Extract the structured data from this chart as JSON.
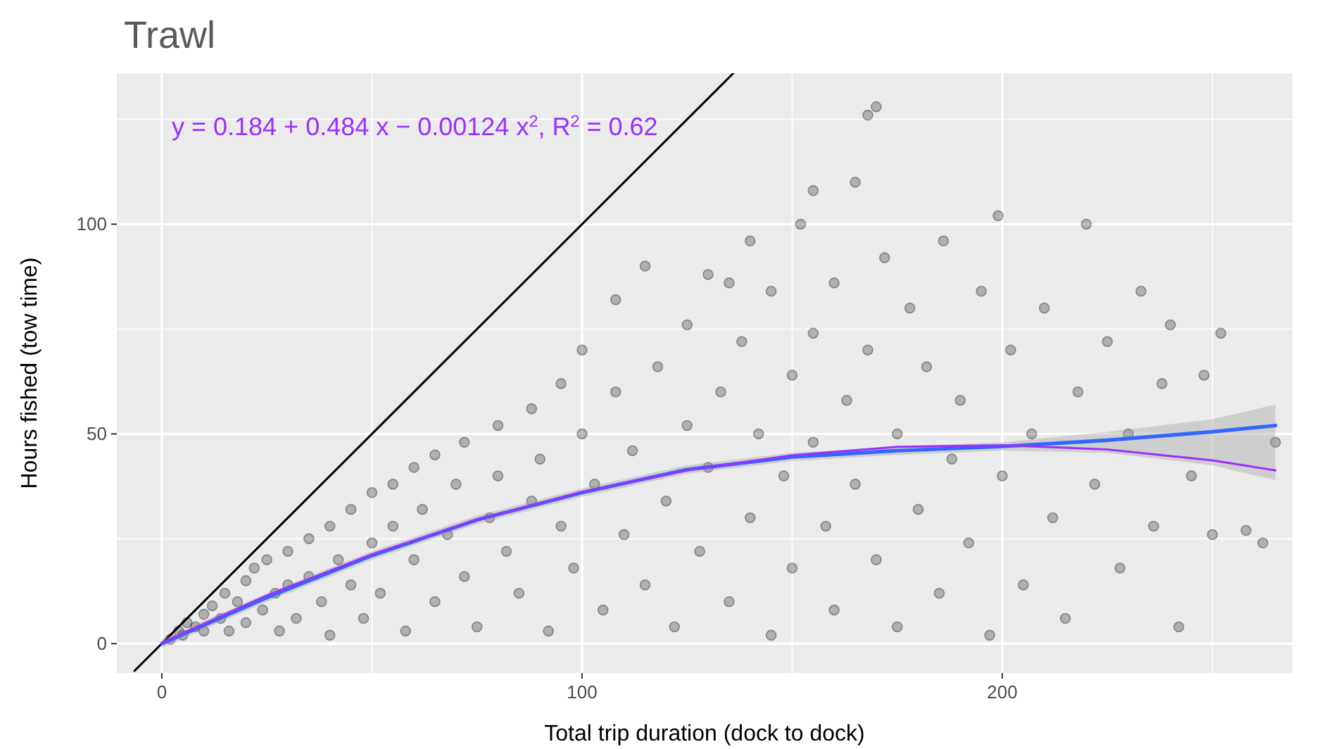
{
  "chart_data": {
    "type": "scatter",
    "title": "Trawl",
    "xlabel": "Total trip duration (dock to dock)",
    "ylabel": "Hours fished (tow time)",
    "annotations": [
      "y = 0.184 + 0.484 x − 0.00124 x$^{2}$, R$^{2}$ = 0.62"
    ],
    "xlim": [
      -10.7,
      269
    ],
    "ylim": [
      -7,
      136
    ],
    "xticks": [
      0,
      {
        "value": 50,
        "label": null
      },
      100,
      {
        "value": 150,
        "label": null
      },
      200,
      {
        "value": 250,
        "label": null
      }
    ],
    "yticks": [
      0,
      {
        "value": 25,
        "label": null
      },
      50,
      {
        "value": 75,
        "label": null
      },
      100,
      {
        "value": 125,
        "label": null
      }
    ],
    "grid": true,
    "series": [
      {
        "color": "#000000",
        "marker": "circle",
        "x": [
          2,
          4,
          5,
          6,
          8,
          10,
          10,
          12,
          14,
          15,
          16,
          18,
          20,
          20,
          22,
          24,
          25,
          27,
          28,
          30,
          30,
          32,
          35,
          35,
          38,
          40,
          40,
          42,
          45,
          45,
          48,
          50,
          50,
          52,
          55,
          55,
          58,
          60,
          60,
          62,
          65,
          65,
          68,
          70,
          72,
          72,
          75,
          78,
          80,
          80,
          82,
          85,
          88,
          88,
          90,
          92,
          95,
          95,
          98,
          100,
          100,
          103,
          105,
          108,
          108,
          110,
          112,
          115,
          115,
          118,
          120,
          122,
          125,
          125,
          128,
          130,
          130,
          133,
          135,
          138,
          140,
          140,
          142,
          145,
          145,
          148,
          150,
          150,
          152,
          155,
          155,
          158,
          160,
          160,
          163,
          165,
          165,
          168,
          170,
          170,
          172,
          175,
          175,
          178,
          180,
          182,
          185,
          186,
          188,
          190,
          192,
          195,
          197,
          199,
          200,
          202,
          205,
          207,
          210,
          212,
          215,
          218,
          220,
          222,
          225,
          228,
          230,
          233,
          236,
          238,
          240,
          242,
          245,
          248,
          250,
          252,
          258,
          262,
          265,
          168,
          155,
          135
        ],
        "values": [
          1,
          3,
          2,
          5,
          4,
          7,
          3,
          9,
          6,
          12,
          3,
          10,
          15,
          5,
          18,
          8,
          20,
          12,
          3,
          22,
          14,
          6,
          25,
          16,
          10,
          28,
          2,
          20,
          32,
          14,
          6,
          36,
          24,
          12,
          38,
          28,
          3,
          42,
          20,
          32,
          45,
          10,
          26,
          38,
          48,
          16,
          4,
          30,
          52,
          40,
          22,
          12,
          56,
          34,
          44,
          3,
          62,
          28,
          18,
          50,
          70,
          38,
          8,
          82,
          60,
          26,
          46,
          90,
          14,
          66,
          34,
          4,
          76,
          52,
          22,
          88,
          42,
          60,
          10,
          72,
          96,
          30,
          50,
          84,
          2,
          40,
          64,
          18,
          100,
          74,
          48,
          28,
          86,
          8,
          58,
          110,
          38,
          70,
          128,
          20,
          92,
          50,
          4,
          80,
          32,
          66,
          12,
          96,
          44,
          58,
          24,
          84,
          2,
          102,
          40,
          70,
          14,
          50,
          80,
          30,
          6,
          60,
          100,
          38,
          72,
          18,
          50,
          84,
          28,
          62,
          76,
          4,
          40,
          64,
          26,
          74,
          27,
          24,
          48,
          126,
          108,
          86
        ]
      },
      {
        "type": "line",
        "color": "#000000",
        "x": [
          -6.5,
          136
        ],
        "values": [
          -6.5,
          136
        ]
      },
      {
        "type": "line",
        "color": "#3366ff",
        "x": [
          0,
          25,
          50,
          75,
          100,
          125,
          150,
          175,
          200,
          225,
          250,
          265
        ],
        "values": [
          0,
          11,
          21,
          29.5,
          36,
          41.5,
          44.5,
          46,
          47,
          48.5,
          50.5,
          52
        ],
        "lower": [
          -1,
          10,
          20,
          28.5,
          35,
          40.5,
          43.5,
          45,
          46,
          45.5,
          42.5,
          39
        ],
        "upper": [
          1,
          12,
          22,
          30.5,
          37,
          42.5,
          45.5,
          47,
          48,
          50.5,
          53.5,
          57
        ]
      },
      {
        "type": "line",
        "color": "#9b30ff",
        "x": [
          0,
          25,
          50,
          75,
          100,
          125,
          150,
          175,
          200,
          225,
          250,
          265
        ],
        "values": [
          0.2,
          11.5,
          21.3,
          29.5,
          36.2,
          41.3,
          44.9,
          46.9,
          47.3,
          46.3,
          43.7,
          41.3
        ]
      }
    ]
  }
}
